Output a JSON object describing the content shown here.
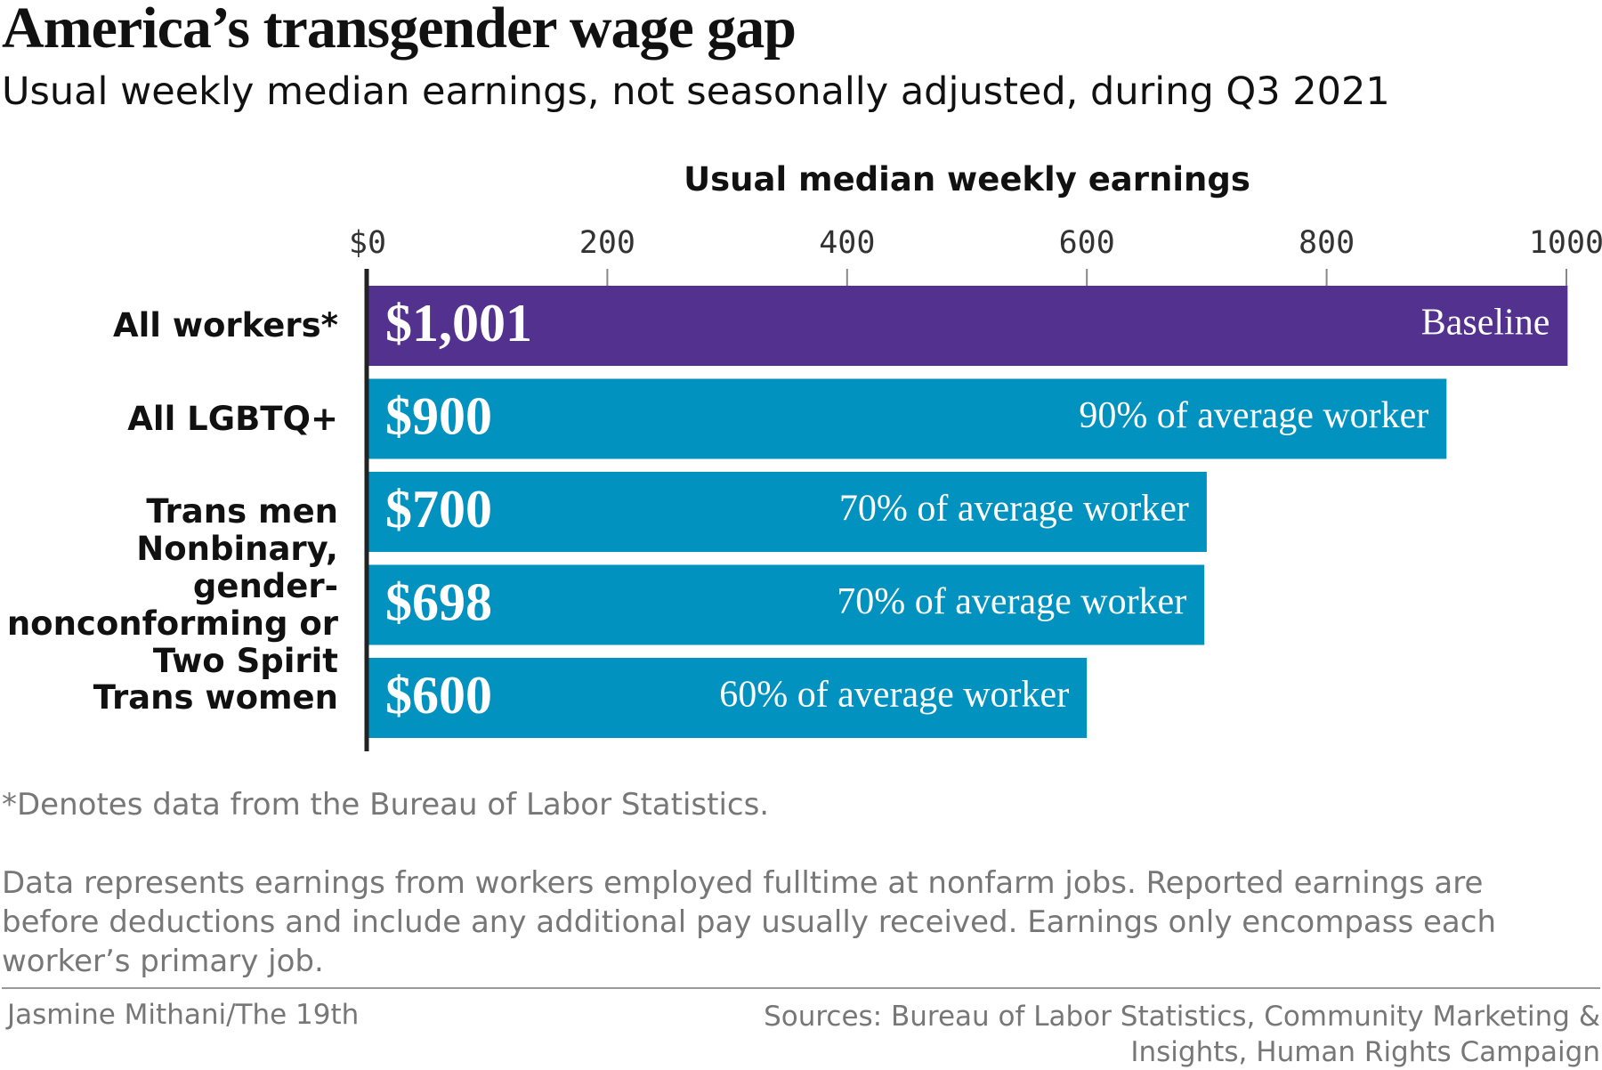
{
  "chart_data": {
    "type": "bar",
    "orientation": "horizontal",
    "title": "America’s transgender wage gap",
    "subtitle": "Usual weekly median earnings, not seasonally adjusted, during Q3 2021",
    "x_label": "Usual median weekly earnings",
    "categories": [
      "All workers*",
      "All LGBTQ+",
      "Trans men",
      "Nonbinary, gender-nonconforming or Two Spirit",
      "Trans women"
    ],
    "values": [
      1001,
      900,
      700,
      698,
      600
    ],
    "value_labels": [
      "$1,001",
      "$900",
      "$700",
      "$698",
      "$600"
    ],
    "colors": [
      "#52318f",
      "#0292c0",
      "#0292c0",
      "#0292c0",
      "#0292c0"
    ],
    "annotations": [
      "Baseline",
      "90% of average worker",
      "70% of average worker",
      "70% of average worker",
      "60% of average worker"
    ],
    "xlim": [
      0,
      1000
    ],
    "xticks": [
      {
        "value": 0,
        "label": "$0"
      },
      200,
      400,
      600,
      800,
      1000
    ],
    "footnote": "*Denotes data from the Bureau of Labor Statistics.",
    "note": "Data represents earnings from workers employed fulltime at nonfarm jobs. Reported earnings are before deductions and include any additional pay usually received. Earnings only encompass each worker’s primary job.",
    "credit": "Jasmine Mithani/The 19th",
    "source": "Sources: Bureau of Labor Statistics, Community Marketing & Insights, Human Rights Campaign"
  }
}
